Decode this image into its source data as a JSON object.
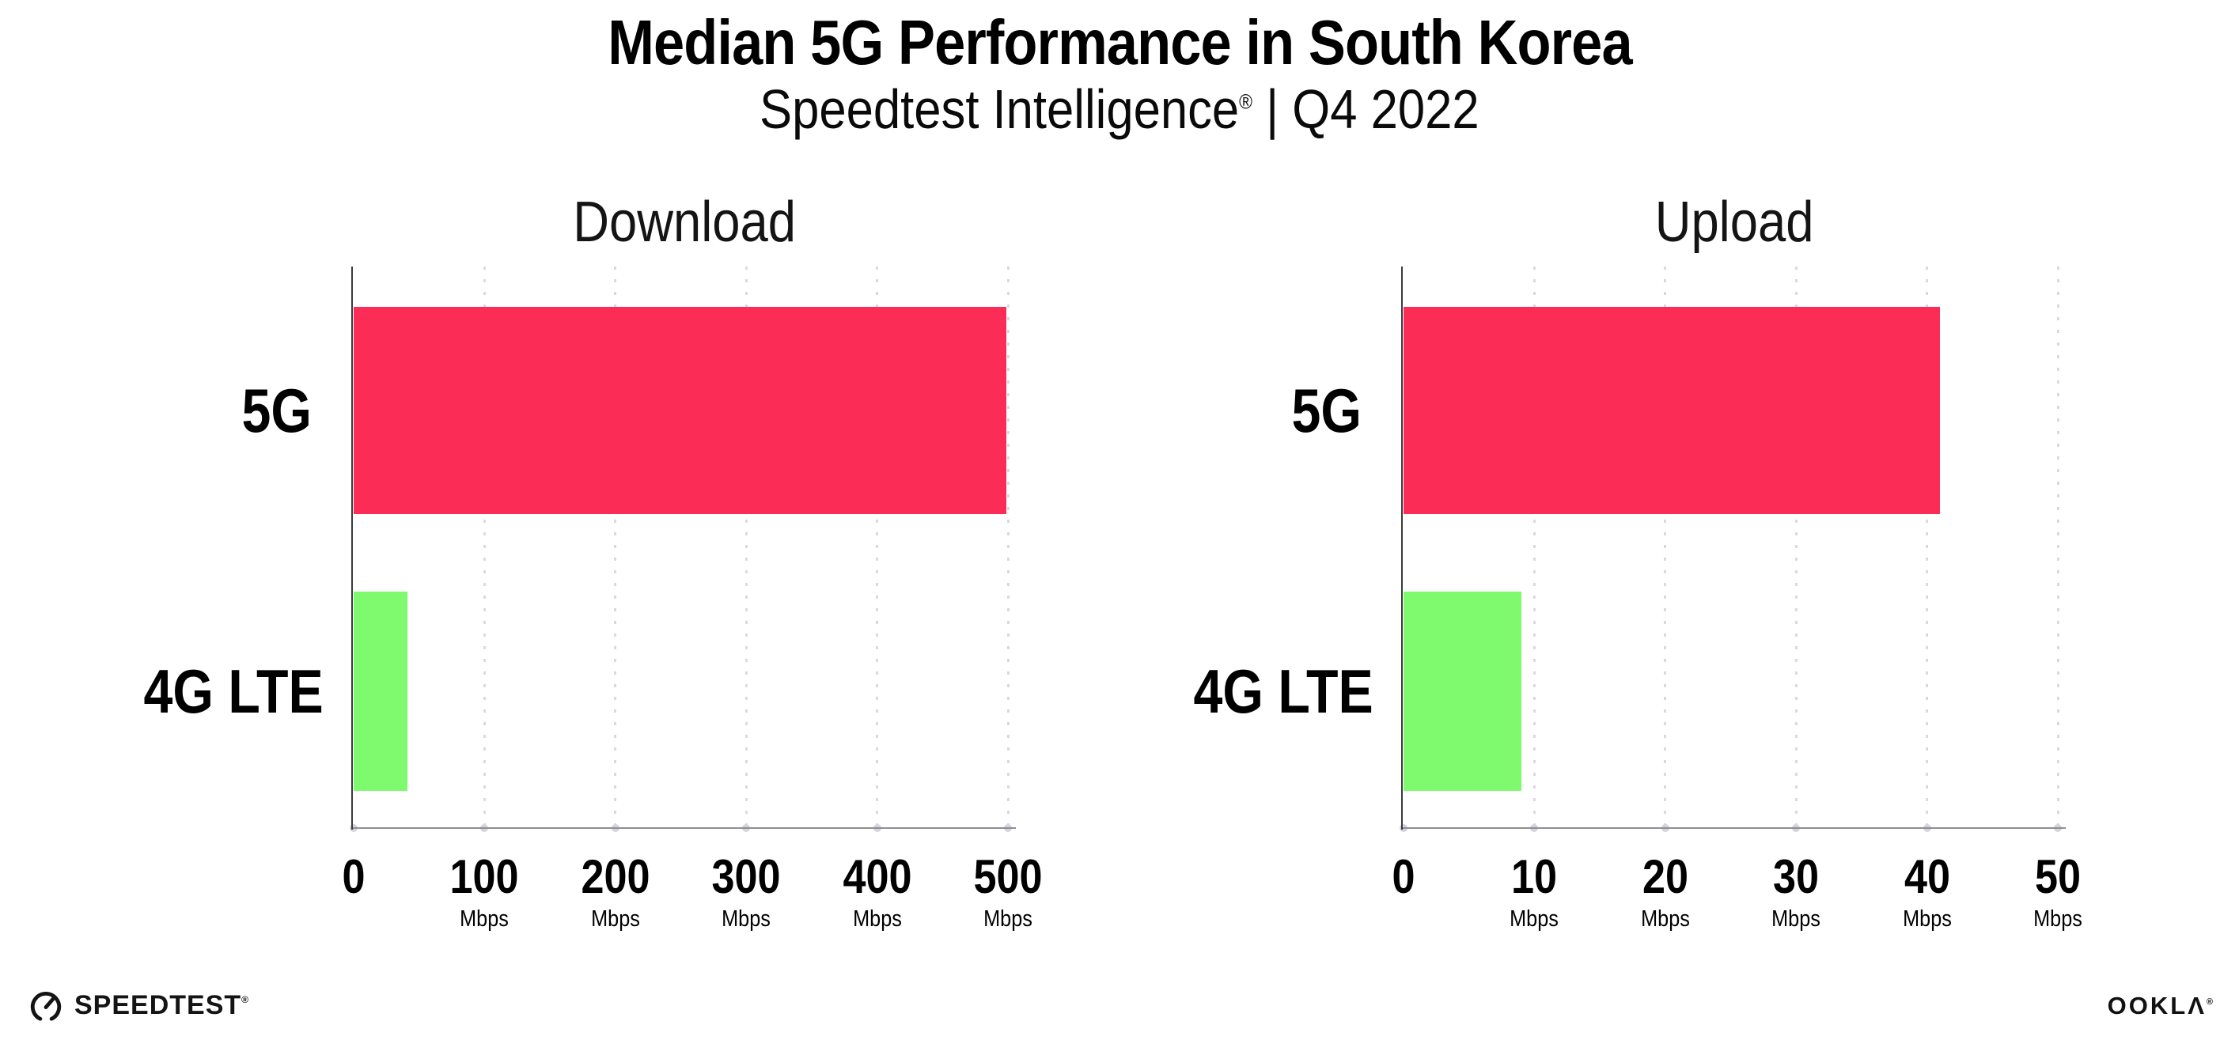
{
  "header": {
    "title": "Median 5G Performance in South Korea",
    "subtitle_brand": "Speedtest Intelligence",
    "subtitle_reg": "®",
    "subtitle_tail": " | Q4 2022"
  },
  "chart_data": [
    {
      "type": "bar",
      "orientation": "horizontal",
      "title": "Download",
      "categories": [
        "5G",
        "4G LTE"
      ],
      "values": [
        499,
        41
      ],
      "unit": "Mbps",
      "xlim": [
        0,
        500
      ],
      "xticks": [
        0,
        100,
        200,
        300,
        400,
        500
      ],
      "tick_unit_label": "Mbps",
      "bar_colors": [
        "#fb2d56",
        "#7ffa6e"
      ],
      "grid": "dotted-vertical",
      "legend": "none"
    },
    {
      "type": "bar",
      "orientation": "horizontal",
      "title": "Upload",
      "categories": [
        "5G",
        "4G LTE"
      ],
      "values": [
        41,
        9
      ],
      "unit": "Mbps",
      "xlim": [
        0,
        50
      ],
      "xticks": [
        0,
        10,
        20,
        30,
        40,
        50
      ],
      "tick_unit_label": "Mbps",
      "bar_colors": [
        "#fb2d56",
        "#7ffa6e"
      ],
      "grid": "dotted-vertical",
      "legend": "none"
    }
  ],
  "colors": {
    "bar_5g": "#fb2d56",
    "bar_4g_lte": "#7ffa6e",
    "gridline": "#d9d9e0",
    "x_axis_line": "#8e8e94",
    "y_axis_line": "#3a3a3e",
    "background": "#ffffff",
    "text": "#000000"
  },
  "footer": {
    "speedtest_label": "SPEEDTEST",
    "speedtest_reg": "®",
    "ookla_label": "OOKLΛ",
    "ookla_reg": "®"
  }
}
